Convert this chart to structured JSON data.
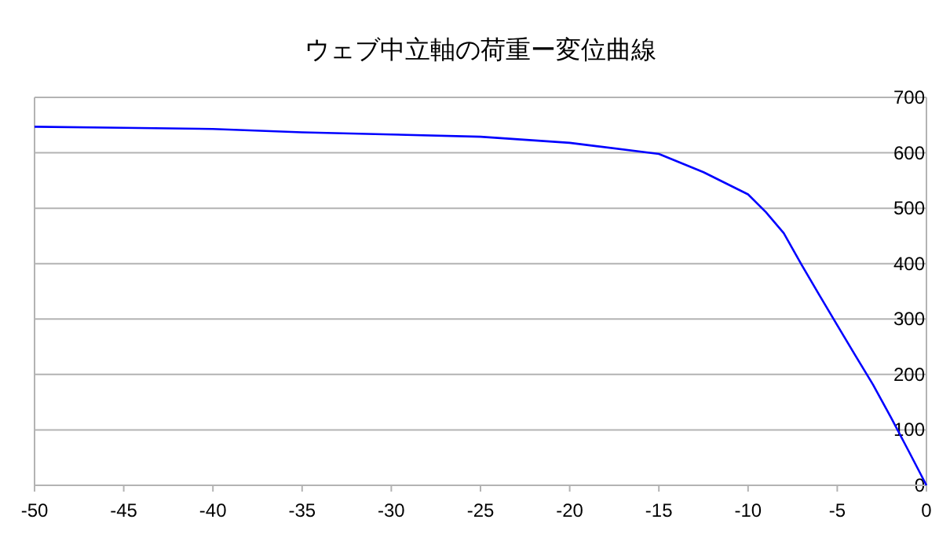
{
  "chart_data": {
    "type": "line",
    "title": "ウェブ中立軸の荷重ー変位曲線",
    "x": [
      -50,
      -45,
      -40,
      -35,
      -30,
      -25,
      -20,
      -18.5,
      -15,
      -12.5,
      -10,
      -9,
      -8,
      -7,
      -6,
      -5,
      -4,
      -3,
      -2,
      -1,
      0
    ],
    "series": [
      {
        "color": "#0000ff",
        "values": [
          647,
          645,
          643,
          637,
          633,
          629,
          618,
          612,
          598,
          565,
          525,
          493,
          455,
          398,
          343,
          289,
          235,
          182,
          123,
          62,
          0
        ]
      }
    ],
    "xlim": [
      -50,
      0
    ],
    "ylim": [
      0,
      700
    ],
    "xticks": [
      -50,
      -45,
      -40,
      -35,
      -30,
      -25,
      -20,
      -15,
      -10,
      -5,
      0
    ],
    "yticks": [
      0,
      100,
      200,
      300,
      400,
      500,
      600,
      700
    ],
    "grid": "y",
    "marker": "none",
    "line_style": "solid"
  }
}
